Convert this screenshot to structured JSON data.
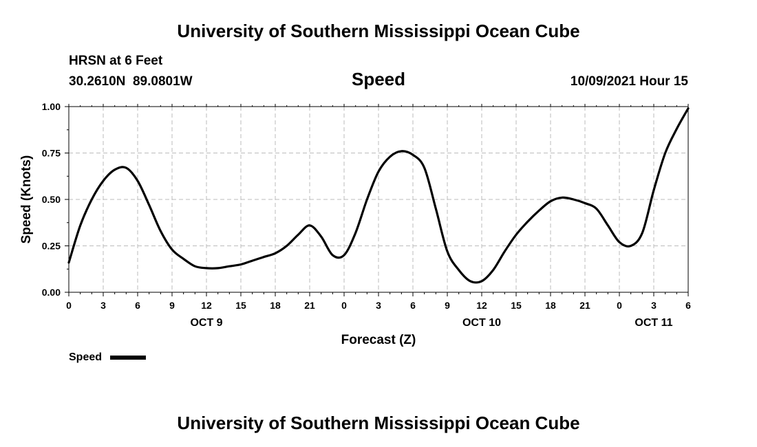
{
  "header": {
    "title": "University of Southern Mississippi Ocean Cube",
    "station": "HRSN at 6 Feet",
    "coords": "30.2610N  89.0801W",
    "chart_title": "Speed",
    "timestamp": "10/09/2021 Hour 15",
    "footer_title": "University of Southern Mississippi Ocean Cube"
  },
  "legend": {
    "label": "Speed"
  },
  "colors": {
    "line": "#000000",
    "grid": "#bbbbbb"
  },
  "chart_data": {
    "type": "line",
    "title": "Speed",
    "xlabel": "Forecast (Z)",
    "ylabel": "Speed (Knots)",
    "ylim": [
      0,
      1
    ],
    "yticks": [
      "0.00",
      "0.25",
      "0.50",
      "0.75",
      "1.00"
    ],
    "xticks": [
      "0",
      "3",
      "6",
      "9",
      "12",
      "15",
      "18",
      "21",
      "0",
      "3",
      "6",
      "9",
      "12",
      "15",
      "18",
      "21",
      "0",
      "3",
      "6"
    ],
    "day_labels": [
      {
        "label": "OCT 9",
        "at_tick": 4
      },
      {
        "label": "OCT 10",
        "at_tick": 12
      },
      {
        "label": "OCT 11",
        "at_tick": 17
      }
    ],
    "grid": true,
    "legend_position": "bottom-left",
    "series": [
      {
        "name": "Speed",
        "x_hours": [
          0,
          1,
          2,
          3,
          4,
          5,
          6,
          7,
          8,
          9,
          10,
          11,
          12,
          13,
          14,
          15,
          16,
          17,
          18,
          19,
          20,
          21,
          22,
          23,
          24,
          25,
          26,
          27,
          28,
          29,
          30,
          31,
          32,
          33,
          34,
          35,
          36,
          37,
          38,
          39,
          40,
          41,
          42,
          43,
          44,
          45,
          46,
          47,
          48,
          49,
          50,
          51,
          52,
          53,
          54
        ],
        "values": [
          0.16,
          0.36,
          0.5,
          0.6,
          0.66,
          0.67,
          0.6,
          0.47,
          0.33,
          0.23,
          0.18,
          0.14,
          0.13,
          0.13,
          0.14,
          0.15,
          0.17,
          0.19,
          0.21,
          0.25,
          0.31,
          0.36,
          0.3,
          0.2,
          0.2,
          0.32,
          0.5,
          0.65,
          0.73,
          0.76,
          0.74,
          0.67,
          0.45,
          0.22,
          0.12,
          0.06,
          0.06,
          0.12,
          0.22,
          0.31,
          0.38,
          0.44,
          0.49,
          0.51,
          0.5,
          0.48,
          0.45,
          0.36,
          0.27,
          0.25,
          0.32,
          0.55,
          0.75,
          0.88,
          0.99
        ]
      }
    ]
  }
}
